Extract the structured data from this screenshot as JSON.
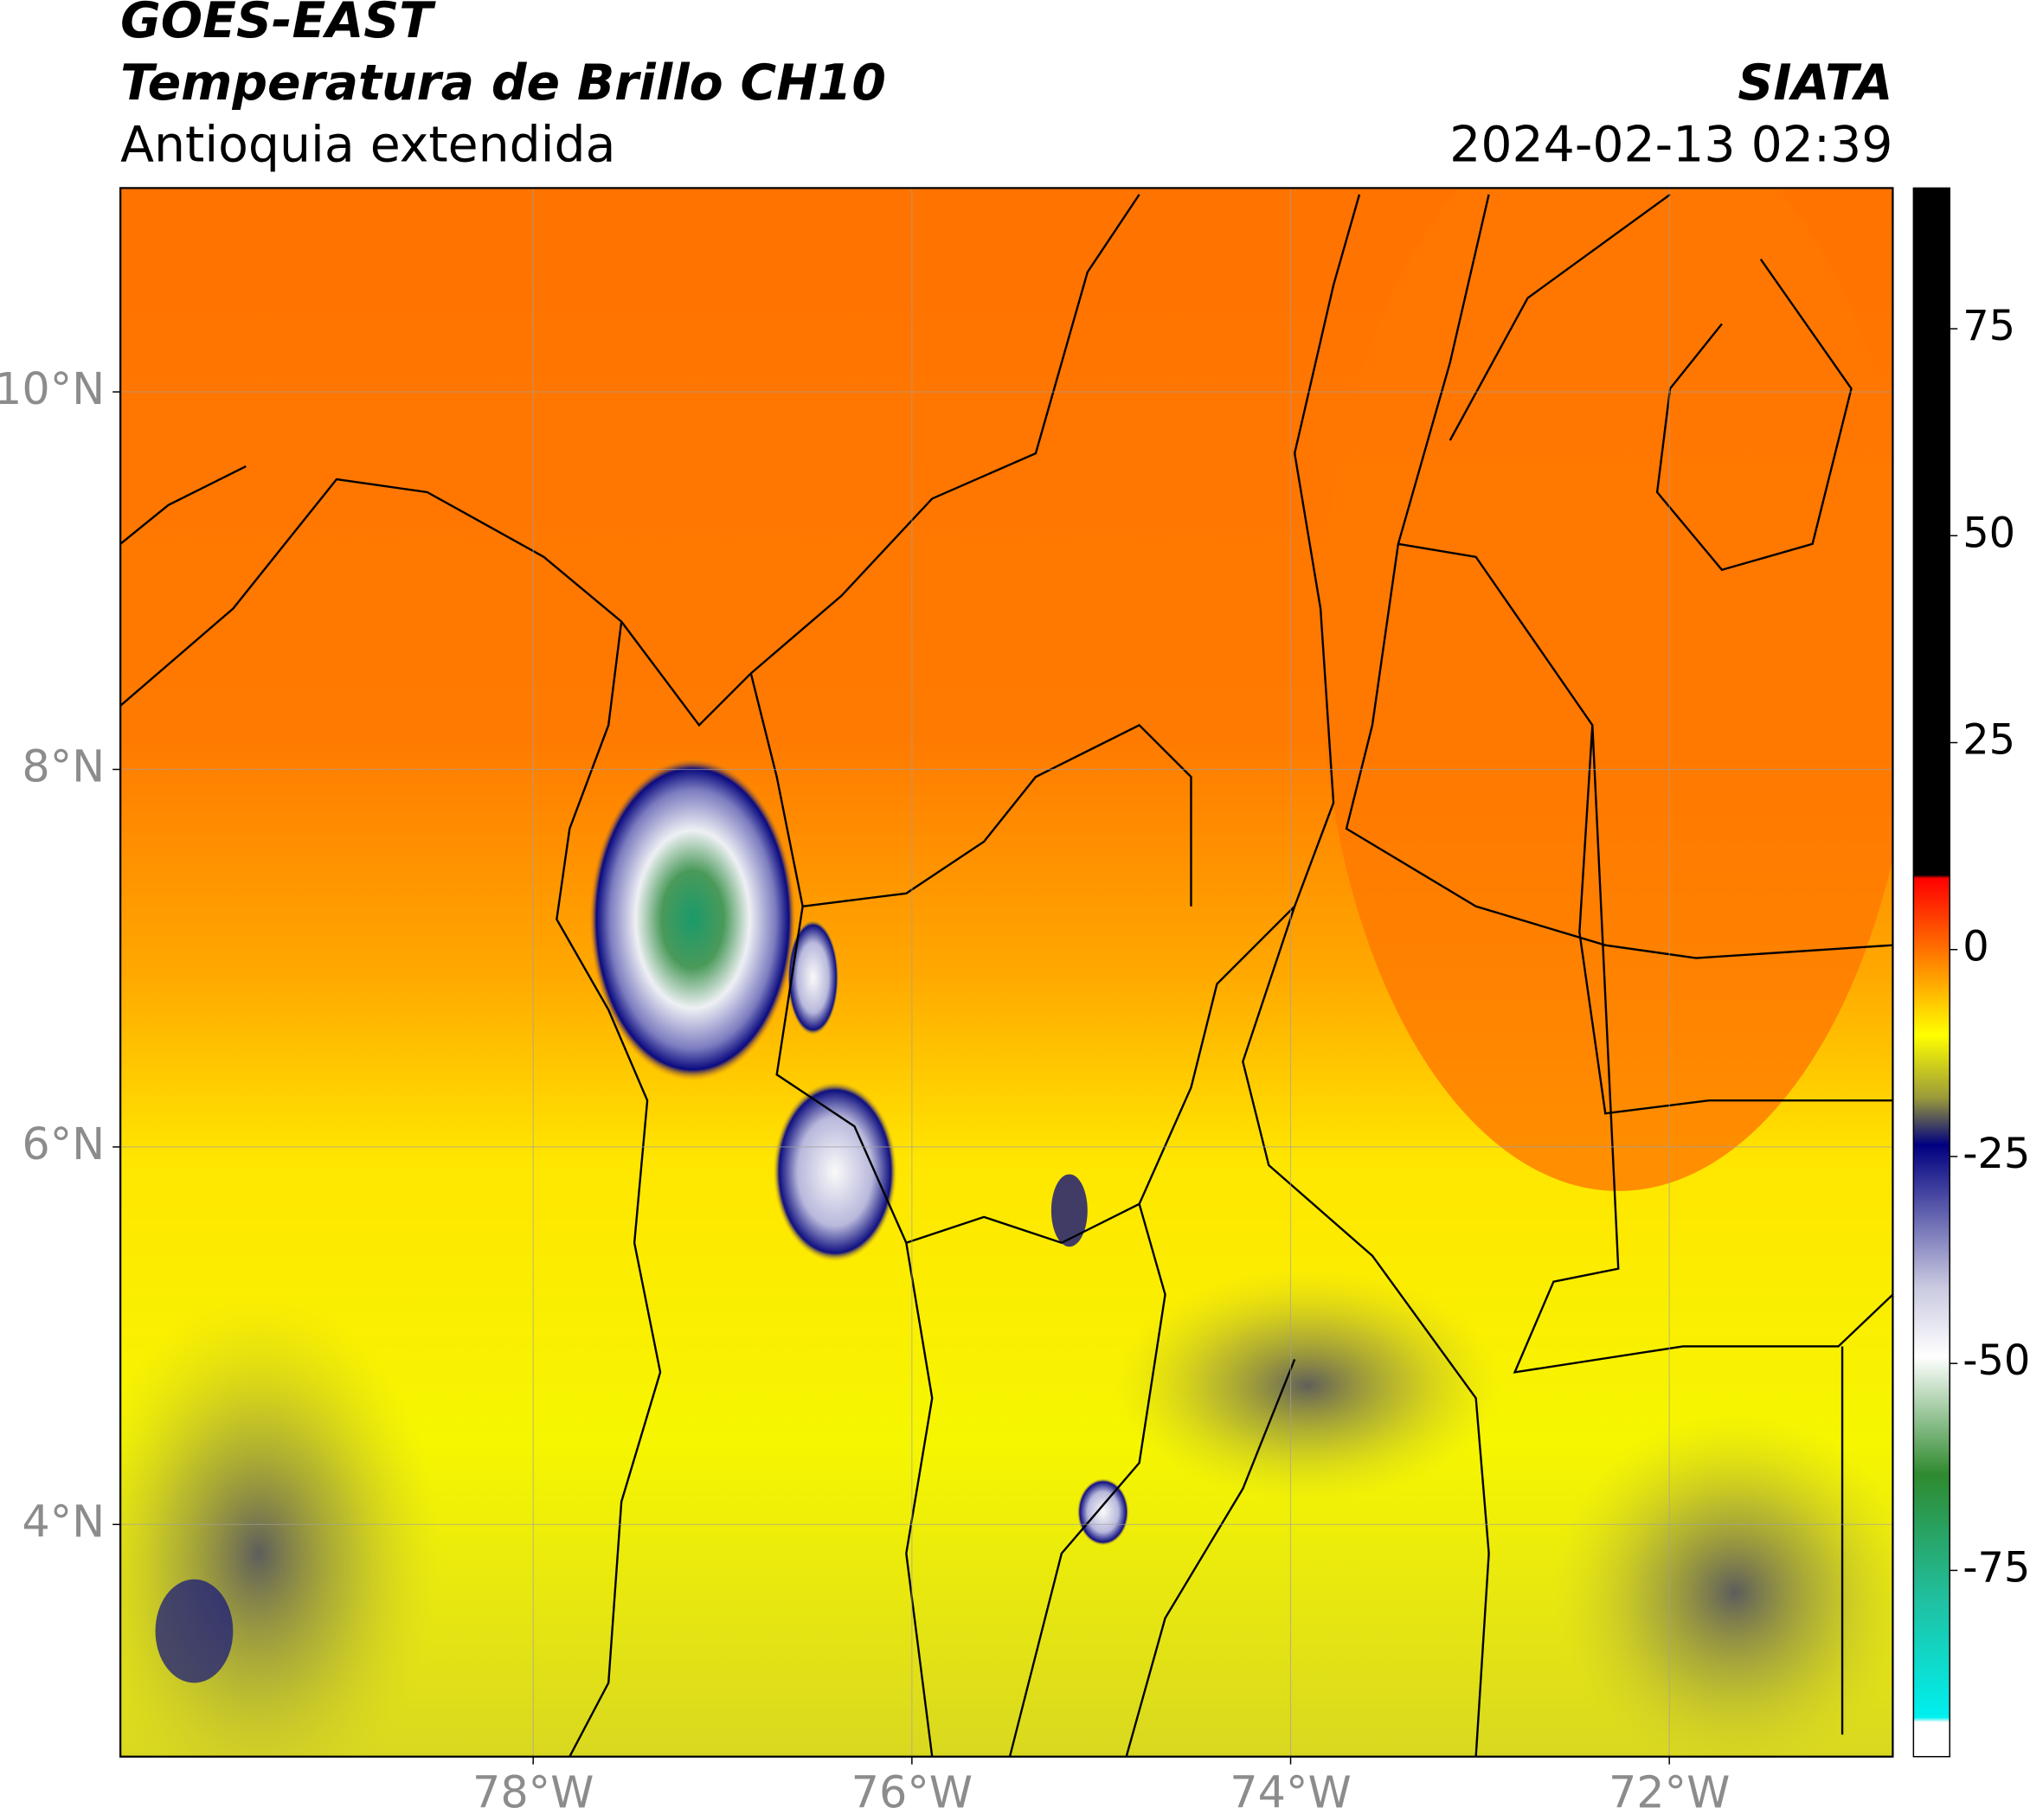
{
  "header": {
    "satellite": "GOES-EAST",
    "product": "Temperatura de Brillo CH10",
    "region": "Antioquia extendida",
    "source": "SIATA",
    "datetime": "2024-02-13 02:39"
  },
  "map": {
    "xlim": [
      -80.18,
      -70.82
    ],
    "ylim": [
      2.77,
      11.08
    ],
    "xticks": [
      {
        "value": -78,
        "label": "78°W"
      },
      {
        "value": -76,
        "label": "76°W"
      },
      {
        "value": -74,
        "label": "74°W"
      },
      {
        "value": -72,
        "label": "72°W"
      }
    ],
    "yticks": [
      {
        "value": 4,
        "label": "4°N"
      },
      {
        "value": 6,
        "label": "6°N"
      },
      {
        "value": 8,
        "label": "8°N"
      },
      {
        "value": 10,
        "label": "10°N"
      }
    ],
    "grid": true
  },
  "colorbar": {
    "lim": [
      -97.5,
      92
    ],
    "ticks": [
      75,
      50,
      25,
      0,
      -25,
      -50,
      -75
    ]
  }
}
